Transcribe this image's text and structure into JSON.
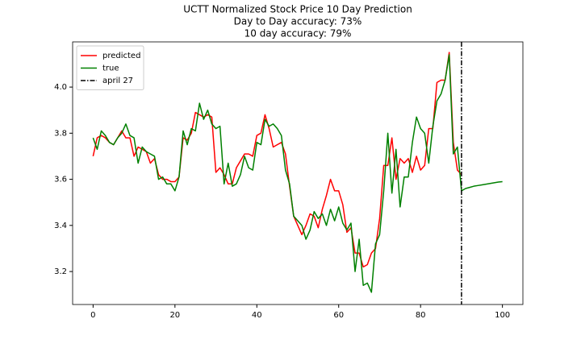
{
  "chart_data": {
    "type": "line",
    "title": "UCTT Normalized Stock Price 10 Day Prediction",
    "subtitle": [
      "Day to Day accuracy: 73%",
      "10 day accuracy: 79%"
    ],
    "x": [
      0,
      1,
      2,
      3,
      4,
      5,
      6,
      7,
      8,
      9,
      10,
      11,
      12,
      13,
      14,
      15,
      16,
      17,
      18,
      19,
      20,
      21,
      22,
      23,
      24,
      25,
      26,
      27,
      28,
      29,
      30,
      31,
      32,
      33,
      34,
      35,
      36,
      37,
      38,
      39,
      40,
      41,
      42,
      43,
      44,
      45,
      46,
      47,
      48,
      49,
      50,
      51,
      52,
      53,
      54,
      55,
      56,
      57,
      58,
      59,
      60,
      61,
      62,
      63,
      64,
      65,
      66,
      67,
      68,
      69,
      70,
      71,
      72,
      73,
      74,
      75,
      76,
      77,
      78,
      79,
      80,
      81,
      82,
      83,
      84,
      85,
      86,
      87,
      88,
      89,
      90,
      91,
      92,
      93,
      94,
      95,
      96,
      97,
      98,
      99,
      100
    ],
    "series": [
      {
        "name": "predicted",
        "color": "#ff0000",
        "values": [
          3.7,
          3.78,
          3.79,
          3.78,
          3.76,
          3.75,
          3.78,
          3.81,
          3.78,
          3.78,
          3.7,
          3.74,
          3.73,
          3.72,
          3.67,
          3.69,
          3.62,
          3.6,
          3.6,
          3.59,
          3.59,
          3.61,
          3.78,
          3.77,
          3.8,
          3.89,
          3.88,
          3.87,
          3.88,
          3.87,
          3.63,
          3.65,
          3.62,
          3.58,
          3.58,
          3.65,
          3.68,
          3.71,
          3.71,
          3.7,
          3.79,
          3.8,
          3.88,
          3.82,
          3.74,
          3.75,
          3.76,
          3.71,
          3.57,
          3.44,
          3.4,
          3.36,
          3.4,
          3.45,
          3.44,
          3.39,
          3.47,
          3.53,
          3.6,
          3.55,
          3.55,
          3.49,
          3.37,
          3.39,
          3.28,
          3.28,
          3.22,
          3.23,
          3.28,
          3.3,
          3.43,
          3.66,
          3.66,
          3.78,
          3.6,
          3.69,
          3.67,
          3.69,
          3.63,
          3.7,
          3.64,
          3.66,
          3.82,
          3.82,
          4.02,
          4.03,
          4.03,
          4.15,
          3.76,
          3.64,
          3.62,
          null,
          null,
          null,
          null,
          null,
          null,
          null,
          null,
          null,
          null
        ]
      },
      {
        "name": "true",
        "color": "#008000",
        "values": [
          3.78,
          3.73,
          3.81,
          3.79,
          3.76,
          3.75,
          3.78,
          3.8,
          3.84,
          3.79,
          3.78,
          3.67,
          3.74,
          3.72,
          3.71,
          3.7,
          3.6,
          3.61,
          3.58,
          3.58,
          3.55,
          3.61,
          3.81,
          3.75,
          3.82,
          3.81,
          3.93,
          3.86,
          3.9,
          3.84,
          3.82,
          3.83,
          3.58,
          3.67,
          3.57,
          3.58,
          3.62,
          3.7,
          3.65,
          3.64,
          3.76,
          3.75,
          3.86,
          3.83,
          3.84,
          3.82,
          3.79,
          3.64,
          3.58,
          3.44,
          3.42,
          3.4,
          3.34,
          3.38,
          3.46,
          3.43,
          3.45,
          3.4,
          3.47,
          3.42,
          3.48,
          3.41,
          3.38,
          3.41,
          3.2,
          3.34,
          3.14,
          3.15,
          3.11,
          3.32,
          3.36,
          3.55,
          3.8,
          3.54,
          3.73,
          3.48,
          3.61,
          3.61,
          3.76,
          3.87,
          3.82,
          3.8,
          3.67,
          3.83,
          3.94,
          3.97,
          4.03,
          4.14,
          3.71,
          3.74,
          3.55,
          3.56,
          3.565,
          3.57,
          3.573,
          3.576,
          3.579,
          3.582,
          3.585,
          3.588,
          3.59
        ]
      }
    ],
    "vline": {
      "x": 90,
      "name": "april 27",
      "color": "#000000"
    },
    "xlim": [
      -5,
      105
    ],
    "xticks": [
      0,
      20,
      40,
      60,
      80,
      100
    ],
    "ylim": [
      3.057,
      4.196
    ],
    "yticks": [
      3.2,
      3.4,
      3.6,
      3.8,
      {
        "value": 4,
        "label": "4.0"
      }
    ],
    "legend": "upper left"
  }
}
